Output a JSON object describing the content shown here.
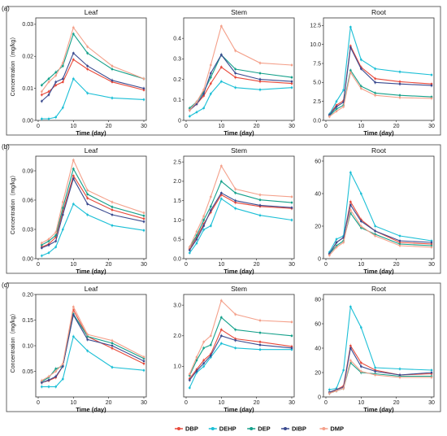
{
  "figure": {
    "row_labels": [
      "(a)",
      "(b)",
      "(c)"
    ],
    "y_axis_label": "Concentration（mg/kg）",
    "x_axis_label": "Time (day)",
    "panel_titles": [
      "Leaf",
      "Stem",
      "Root"
    ]
  },
  "legend": [
    {
      "name": "DBP",
      "color": "#e8493a"
    },
    {
      "name": "DEHP",
      "color": "#1bbfd6"
    },
    {
      "name": "DEP",
      "color": "#14a08a"
    },
    {
      "name": "DIBP",
      "color": "#3a4a8f"
    },
    {
      "name": "DMP",
      "color": "#f4a08a"
    }
  ],
  "chart_data": [
    {
      "type": "line",
      "row": "(a)",
      "title": "Leaf",
      "xlabel": "Time (day)",
      "ylabel": "Concentration（mg/kg）",
      "x": [
        1,
        3,
        5,
        7,
        10,
        14,
        21,
        30
      ],
      "xlim": [
        0,
        30
      ],
      "ylim": [
        0,
        0.032
      ],
      "yticks": [
        0,
        0.01,
        0.02,
        0.03
      ],
      "ytick_labels": [
        "0.00",
        "0.01",
        "0.02",
        "0.03"
      ],
      "xticks": [
        0,
        10,
        20,
        30
      ],
      "series": [
        {
          "name": "DBP",
          "values": [
            0.008,
            0.009,
            0.011,
            0.012,
            0.019,
            0.016,
            0.012,
            0.0095
          ]
        },
        {
          "name": "DEHP",
          "values": [
            0.0005,
            0.0005,
            0.001,
            0.004,
            0.013,
            0.0085,
            0.007,
            0.0065
          ]
        },
        {
          "name": "DEP",
          "values": [
            0.011,
            0.013,
            0.015,
            0.017,
            0.027,
            0.021,
            0.016,
            0.013
          ]
        },
        {
          "name": "DIBP",
          "values": [
            0.006,
            0.008,
            0.012,
            0.013,
            0.021,
            0.017,
            0.0125,
            0.01
          ]
        },
        {
          "name": "DMP",
          "values": [
            0.009,
            0.012,
            0.014,
            0.018,
            0.029,
            0.023,
            0.017,
            0.013
          ]
        }
      ]
    },
    {
      "type": "line",
      "row": "(a)",
      "title": "Stem",
      "xlabel": "Time (day)",
      "ylabel": "",
      "x": [
        1,
        3,
        5,
        7,
        10,
        14,
        21,
        30
      ],
      "xlim": [
        0,
        30
      ],
      "ylim": [
        0,
        0.5
      ],
      "yticks": [
        0,
        0.1,
        0.2,
        0.3,
        0.4
      ],
      "ytick_labels": [
        "0",
        "0.1",
        "0.2",
        "0.3",
        "0.4"
      ],
      "xticks": [
        0,
        10,
        20,
        30
      ],
      "series": [
        {
          "name": "DBP",
          "values": [
            0.05,
            0.08,
            0.12,
            0.18,
            0.26,
            0.21,
            0.19,
            0.18
          ]
        },
        {
          "name": "DEHP",
          "values": [
            0.02,
            0.04,
            0.06,
            0.13,
            0.19,
            0.16,
            0.15,
            0.16
          ]
        },
        {
          "name": "DEP",
          "values": [
            0.06,
            0.09,
            0.14,
            0.21,
            0.32,
            0.25,
            0.23,
            0.21
          ]
        },
        {
          "name": "DIBP",
          "values": [
            0.05,
            0.08,
            0.13,
            0.23,
            0.32,
            0.23,
            0.2,
            0.19
          ]
        },
        {
          "name": "DMP",
          "values": [
            0.05,
            0.09,
            0.15,
            0.27,
            0.46,
            0.34,
            0.28,
            0.27
          ]
        }
      ]
    },
    {
      "type": "line",
      "row": "(a)",
      "title": "Root",
      "xlabel": "Time (day)",
      "ylabel": "",
      "x": [
        1,
        3,
        5,
        7,
        10,
        14,
        21,
        30
      ],
      "xlim": [
        0,
        30
      ],
      "ylim": [
        0,
        13.5
      ],
      "yticks": [
        0,
        2.5,
        5,
        7.5,
        10,
        12.5
      ],
      "ytick_labels": [
        "0.0",
        "2.5",
        "5.0",
        "7.5",
        "10.0",
        "12.5"
      ],
      "xticks": [
        0,
        10,
        20,
        30
      ],
      "series": [
        {
          "name": "DBP",
          "values": [
            0.8,
            2.0,
            2.6,
            9.8,
            7.0,
            5.5,
            5.1,
            4.8
          ]
        },
        {
          "name": "DEHP",
          "values": [
            0.8,
            2.5,
            4.0,
            12.3,
            8.0,
            6.8,
            6.4,
            6.0
          ]
        },
        {
          "name": "DEP",
          "values": [
            0.6,
            1.5,
            2.0,
            6.6,
            4.5,
            3.6,
            3.3,
            3.1
          ]
        },
        {
          "name": "DIBP",
          "values": [
            0.7,
            1.8,
            2.4,
            9.6,
            6.8,
            5.0,
            4.8,
            4.6
          ]
        },
        {
          "name": "DMP",
          "values": [
            0.5,
            1.2,
            1.8,
            6.3,
            4.2,
            3.3,
            3.0,
            2.9
          ]
        }
      ]
    },
    {
      "type": "line",
      "row": "(b)",
      "title": "Leaf",
      "xlabel": "Time (day)",
      "ylabel": "Concentration（mg/kg）",
      "x": [
        1,
        3,
        5,
        7,
        10,
        14,
        21,
        30
      ],
      "xlim": [
        0,
        30
      ],
      "ylim": [
        0,
        0.105
      ],
      "yticks": [
        0,
        0.03,
        0.06,
        0.09
      ],
      "ytick_labels": [
        "0.00",
        "0.03",
        "0.06",
        "0.09"
      ],
      "xticks": [
        0,
        10,
        20,
        30
      ],
      "series": [
        {
          "name": "DBP",
          "values": [
            0.012,
            0.015,
            0.022,
            0.048,
            0.085,
            0.062,
            0.05,
            0.041
          ]
        },
        {
          "name": "DEHP",
          "values": [
            0.003,
            0.006,
            0.012,
            0.03,
            0.056,
            0.045,
            0.034,
            0.029
          ]
        },
        {
          "name": "DEP",
          "values": [
            0.014,
            0.018,
            0.024,
            0.052,
            0.092,
            0.066,
            0.053,
            0.044
          ]
        },
        {
          "name": "DIBP",
          "values": [
            0.011,
            0.014,
            0.018,
            0.045,
            0.082,
            0.056,
            0.045,
            0.038
          ]
        },
        {
          "name": "DMP",
          "values": [
            0.016,
            0.02,
            0.027,
            0.058,
            0.101,
            0.07,
            0.058,
            0.047
          ]
        }
      ]
    },
    {
      "type": "line",
      "row": "(b)",
      "title": "Stem",
      "xlabel": "Time (day)",
      "ylabel": "",
      "x": [
        1,
        3,
        5,
        7,
        10,
        14,
        21,
        30
      ],
      "xlim": [
        0,
        30
      ],
      "ylim": [
        0,
        2.65
      ],
      "yticks": [
        0,
        0.5,
        1,
        1.5,
        2,
        2.5
      ],
      "ytick_labels": [
        "0.0",
        "0.5",
        "1.0",
        "1.5",
        "2.0",
        "2.5"
      ],
      "xticks": [
        0,
        10,
        20,
        30
      ],
      "series": [
        {
          "name": "DBP",
          "values": [
            0.25,
            0.55,
            0.9,
            1.2,
            1.65,
            1.45,
            1.35,
            1.3
          ]
        },
        {
          "name": "DEHP",
          "values": [
            0.15,
            0.4,
            0.75,
            0.85,
            1.55,
            1.3,
            1.12,
            1.0
          ]
        },
        {
          "name": "DEP",
          "values": [
            0.3,
            0.6,
            1.0,
            1.35,
            2.0,
            1.7,
            1.52,
            1.45
          ]
        },
        {
          "name": "DIBP",
          "values": [
            0.22,
            0.5,
            0.85,
            1.25,
            1.7,
            1.5,
            1.38,
            1.32
          ]
        },
        {
          "name": "DMP",
          "values": [
            0.3,
            0.7,
            1.1,
            1.6,
            2.4,
            1.8,
            1.65,
            1.6
          ]
        }
      ]
    },
    {
      "type": "line",
      "row": "(b)",
      "title": "Root",
      "xlabel": "Time (day)",
      "ylabel": "",
      "x": [
        1,
        3,
        5,
        7,
        10,
        14,
        21,
        30
      ],
      "xlim": [
        0,
        30
      ],
      "ylim": [
        0,
        63
      ],
      "yticks": [
        0,
        20,
        40,
        60
      ],
      "ytick_labels": [
        "0",
        "20",
        "40",
        "60"
      ],
      "xticks": [
        0,
        10,
        20,
        30
      ],
      "series": [
        {
          "name": "DBP",
          "values": [
            3,
            10,
            13,
            35,
            24,
            17,
            10,
            9
          ]
        },
        {
          "name": "DEHP",
          "values": [
            4,
            12,
            14,
            53,
            40,
            20,
            14,
            11
          ]
        },
        {
          "name": "DEP",
          "values": [
            3,
            8,
            11,
            28,
            19,
            15,
            9,
            8
          ]
        },
        {
          "name": "DIBP",
          "values": [
            3,
            10,
            13,
            33,
            23,
            17,
            11,
            10
          ]
        },
        {
          "name": "DMP",
          "values": [
            2,
            7,
            10,
            30,
            20,
            14,
            8,
            7
          ]
        }
      ]
    },
    {
      "type": "line",
      "row": "(c)",
      "title": "Leaf",
      "xlabel": "Time (day)",
      "ylabel": "Concentration（mg/kg）",
      "x": [
        1,
        3,
        5,
        7,
        10,
        14,
        21,
        30
      ],
      "xlim": [
        0,
        30
      ],
      "ylim": [
        0,
        0.2
      ],
      "yticks": [
        0.05,
        0.1,
        0.15,
        0.2
      ],
      "ytick_labels": [
        "0.05",
        "0.10",
        "0.15",
        "0.20"
      ],
      "xticks": [
        0,
        10,
        20,
        30
      ],
      "series": [
        {
          "name": "DBP",
          "values": [
            0.028,
            0.032,
            0.038,
            0.06,
            0.17,
            0.118,
            0.095,
            0.065
          ]
        },
        {
          "name": "DEHP",
          "values": [
            0.02,
            0.02,
            0.02,
            0.035,
            0.118,
            0.09,
            0.058,
            0.052
          ]
        },
        {
          "name": "DEP",
          "values": [
            0.03,
            0.038,
            0.055,
            0.06,
            0.162,
            0.118,
            0.105,
            0.075
          ]
        },
        {
          "name": "DIBP",
          "values": [
            0.028,
            0.033,
            0.04,
            0.06,
            0.16,
            0.112,
            0.1,
            0.07
          ]
        },
        {
          "name": "DMP",
          "values": [
            0.032,
            0.04,
            0.05,
            0.065,
            0.176,
            0.122,
            0.11,
            0.078
          ]
        }
      ]
    },
    {
      "type": "line",
      "row": "(c)",
      "title": "Stem",
      "xlabel": "Time (day)",
      "ylabel": "",
      "x": [
        1,
        3,
        5,
        7,
        10,
        14,
        21,
        30
      ],
      "xlim": [
        0,
        30
      ],
      "ylim": [
        0,
        3.35
      ],
      "yticks": [
        1,
        2,
        3
      ],
      "ytick_labels": [
        "1.0",
        "2.0",
        "3.0"
      ],
      "xticks": [
        0,
        10,
        20,
        30
      ],
      "series": [
        {
          "name": "DBP",
          "values": [
            0.6,
            0.9,
            1.2,
            1.4,
            2.2,
            1.9,
            1.8,
            1.65
          ]
        },
        {
          "name": "DEHP",
          "values": [
            0.3,
            0.8,
            1.0,
            1.3,
            1.75,
            1.6,
            1.55,
            1.55
          ]
        },
        {
          "name": "DEP",
          "values": [
            0.7,
            1.2,
            1.6,
            1.7,
            2.6,
            2.2,
            2.1,
            2.0
          ]
        },
        {
          "name": "DIBP",
          "values": [
            0.55,
            0.85,
            1.1,
            1.35,
            2.0,
            1.85,
            1.7,
            1.6
          ]
        },
        {
          "name": "DMP",
          "values": [
            0.75,
            1.3,
            1.8,
            2.0,
            3.15,
            2.7,
            2.5,
            2.45
          ]
        }
      ]
    },
    {
      "type": "line",
      "row": "(c)",
      "title": "Root",
      "xlabel": "Time (day)",
      "ylabel": "",
      "x": [
        1,
        3,
        5,
        7,
        10,
        14,
        21,
        30
      ],
      "xlim": [
        0,
        30
      ],
      "ylim": [
        0,
        84
      ],
      "yticks": [
        0,
        20,
        40,
        60,
        80
      ],
      "ytick_labels": [
        "0",
        "20",
        "40",
        "60",
        "80"
      ],
      "xticks": [
        0,
        10,
        20,
        30
      ],
      "series": [
        {
          "name": "DBP",
          "values": [
            3,
            6,
            9,
            42,
            28,
            22,
            18,
            19
          ]
        },
        {
          "name": "DEHP",
          "values": [
            6,
            7,
            22,
            74,
            57,
            24,
            23,
            22
          ]
        },
        {
          "name": "DEP",
          "values": [
            3,
            5,
            7,
            28,
            20,
            19,
            17,
            17
          ]
        },
        {
          "name": "DIBP",
          "values": [
            4,
            6,
            8,
            40,
            25,
            21,
            18,
            20
          ]
        },
        {
          "name": "DMP",
          "values": [
            3,
            5,
            7,
            30,
            21,
            18,
            16,
            16
          ]
        }
      ]
    }
  ]
}
